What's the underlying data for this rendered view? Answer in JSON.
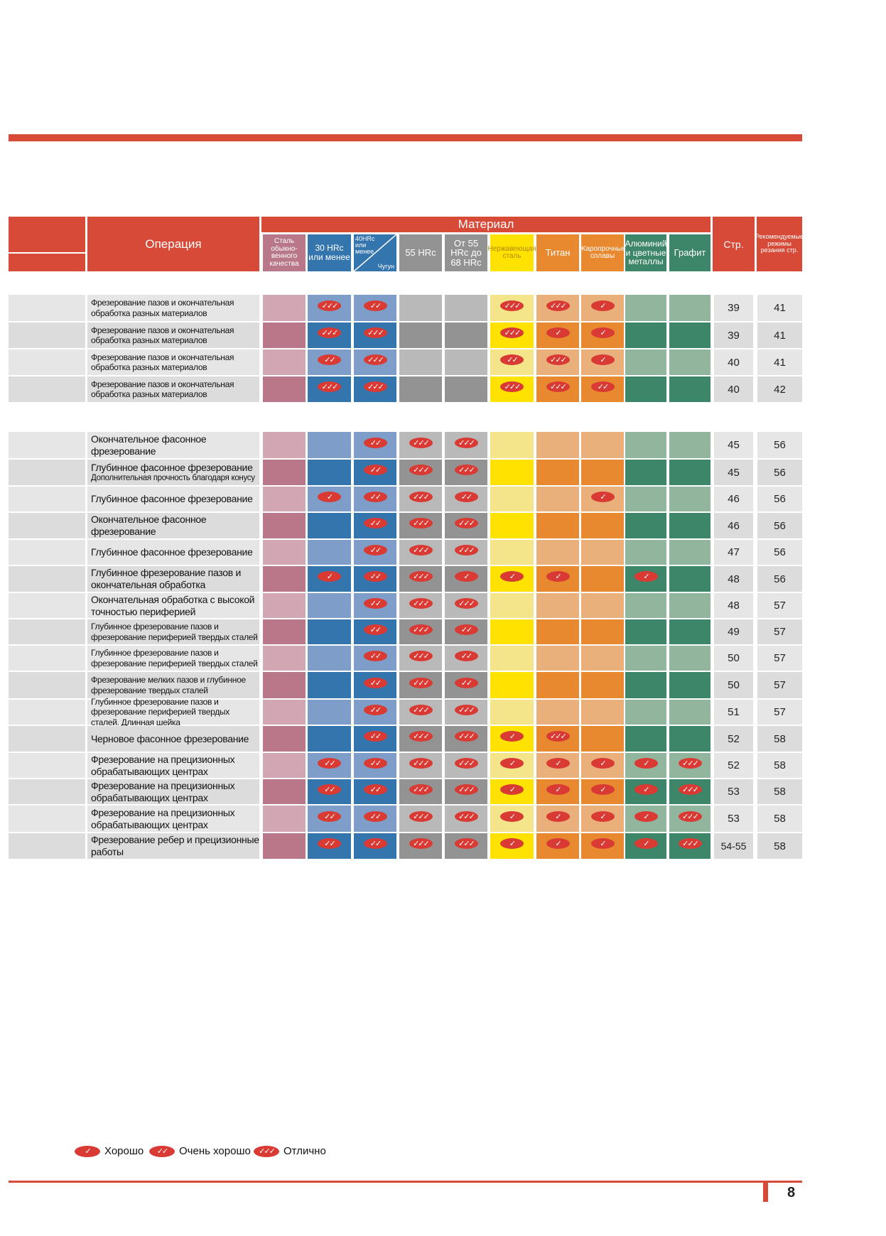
{
  "header": {
    "operation_label": "Операция",
    "material_label": "Материал",
    "page_col_label": "Стр.",
    "rec_col_label": "Рекомендуемые режимы резания стр."
  },
  "materials": [
    {
      "label": "Сталь обыкно- венного качества",
      "color": "#b9788a",
      "light": "#d3a6b4"
    },
    {
      "label": "30 HRc или менее",
      "color": "#3475ad",
      "light": "#7e9dc9"
    },
    {
      "label": "40HRc или менее",
      "label2": "Чугун",
      "color": "#3475ad",
      "light": "#7e9dc9"
    },
    {
      "label": "55 HRc",
      "color": "#939393",
      "light": "#b9b9b9"
    },
    {
      "label": "От 55 HRc до 68 HRc",
      "color": "#939393",
      "light": "#b9b9b9"
    },
    {
      "label": "Нержавеющая сталь",
      "color": "#ffe200",
      "light": "#f4e58a"
    },
    {
      "label": "Титан",
      "color": "#e8882f",
      "light": "#e9b07b"
    },
    {
      "label": "Жаропрочные сплавы",
      "color": "#e8882f",
      "light": "#e9b07b"
    },
    {
      "label": "Алюминий и цветные металлы",
      "color": "#3e8669",
      "light": "#92b59d"
    },
    {
      "label": "Графит",
      "color": "#3e8669",
      "light": "#92b59d"
    }
  ],
  "mark_glyphs": {
    "1": "✓",
    "2": "✓✓",
    "3": "✓✓✓"
  },
  "group1": [
    {
      "op": "Фрезерование пазов и окончательная обработка разных материалов",
      "marks": [
        0,
        3,
        2,
        0,
        0,
        3,
        3,
        1,
        0,
        0
      ],
      "page": "39",
      "rec": "41"
    },
    {
      "op": "Фрезерование пазов и окончательная обработка разных материалов",
      "marks": [
        0,
        3,
        3,
        0,
        0,
        3,
        1,
        1,
        0,
        0
      ],
      "page": "39",
      "rec": "41"
    },
    {
      "op": "Фрезерование пазов и окончательная обработка разных материалов",
      "marks": [
        0,
        2,
        3,
        0,
        0,
        2,
        3,
        1,
        0,
        0
      ],
      "page": "40",
      "rec": "41"
    },
    {
      "op": "Фрезерование пазов и окончательная обработка разных материалов",
      "marks": [
        0,
        3,
        3,
        0,
        0,
        3,
        3,
        2,
        0,
        0
      ],
      "page": "40",
      "rec": "42"
    }
  ],
  "group2": [
    {
      "op": "Окончательное фасонное фрезерование",
      "marks": [
        0,
        0,
        2,
        3,
        3,
        0,
        0,
        0,
        0,
        0
      ],
      "page": "45",
      "rec": "56"
    },
    {
      "op": "Глубинное фасонное фрезерование",
      "op2": "Дополнительная прочность благодаря конусу",
      "marks": [
        0,
        0,
        2,
        3,
        3,
        0,
        0,
        0,
        0,
        0
      ],
      "page": "45",
      "rec": "56"
    },
    {
      "op": "Глубинное фасонное фрезерование",
      "marks": [
        0,
        1,
        2,
        3,
        2,
        0,
        0,
        1,
        0,
        0
      ],
      "page": "46",
      "rec": "56"
    },
    {
      "op": "Окончательное фасонное фрезерование",
      "marks": [
        0,
        0,
        2,
        3,
        3,
        0,
        0,
        0,
        0,
        0
      ],
      "page": "46",
      "rec": "56"
    },
    {
      "op": "Глубинное фасонное фрезерование",
      "marks": [
        0,
        0,
        2,
        3,
        3,
        0,
        0,
        0,
        0,
        0
      ],
      "page": "47",
      "rec": "56"
    },
    {
      "op": "Глубинное фрезерование пазов и окончательная обработка",
      "marks": [
        0,
        1,
        2,
        3,
        1,
        1,
        1,
        0,
        1,
        0
      ],
      "page": "48",
      "rec": "56"
    },
    {
      "op": "Окончательная обработка с высокой точностью периферией",
      "marks": [
        0,
        0,
        2,
        3,
        3,
        0,
        0,
        0,
        0,
        0
      ],
      "page": "48",
      "rec": "57"
    },
    {
      "op": "Глубинное фрезерование пазов и фрезерование периферией твердых сталей",
      "marks": [
        0,
        0,
        2,
        3,
        2,
        0,
        0,
        0,
        0,
        0
      ],
      "page": "49",
      "rec": "57"
    },
    {
      "op": "Глубинное фрезерование пазов и фрезерование периферией твердых сталей",
      "marks": [
        0,
        0,
        2,
        3,
        2,
        0,
        0,
        0,
        0,
        0
      ],
      "page": "50",
      "rec": "57"
    },
    {
      "op": "Фрезерование мелких пазов и глубинное фрезерование твердых сталей",
      "marks": [
        0,
        0,
        2,
        3,
        2,
        0,
        0,
        0,
        0,
        0
      ],
      "page": "50",
      "rec": "57"
    },
    {
      "op": "Глубинное фрезерование пазов и фрезерование периферией твердых сталей. Длинная шейка",
      "marks": [
        0,
        0,
        2,
        3,
        3,
        0,
        0,
        0,
        0,
        0
      ],
      "page": "51",
      "rec": "57"
    },
    {
      "op": "Черновое фасонное фрезерование",
      "marks": [
        0,
        0,
        2,
        3,
        3,
        1,
        3,
        0,
        0,
        0
      ],
      "page": "52",
      "rec": "58"
    },
    {
      "op": "Фрезерование на прецизионных обрабатывающих центрах",
      "marks": [
        0,
        2,
        2,
        3,
        3,
        1,
        1,
        1,
        1,
        3
      ],
      "page": "52",
      "rec": "58"
    },
    {
      "op": "Фрезерование на прецизионных обрабатывающих центрах",
      "marks": [
        0,
        2,
        2,
        3,
        3,
        1,
        1,
        1,
        1,
        3
      ],
      "page": "53",
      "rec": "58"
    },
    {
      "op": "Фрезерование на прецизионных обрабатывающих центрах",
      "marks": [
        0,
        2,
        2,
        3,
        3,
        1,
        1,
        1,
        1,
        3
      ],
      "page": "53",
      "rec": "58"
    },
    {
      "op": "Фрезерование ребер и прецизионные работы",
      "marks": [
        0,
        2,
        2,
        3,
        3,
        1,
        1,
        1,
        1,
        3
      ],
      "page": "54-55",
      "rec": "58"
    }
  ],
  "legend": [
    {
      "glyph": "✓",
      "label": "Хорошо"
    },
    {
      "glyph": "✓✓",
      "label": "Очень хорошо"
    },
    {
      "glyph": "✓✓✓",
      "label": "Отлично"
    }
  ],
  "page_number": "8"
}
